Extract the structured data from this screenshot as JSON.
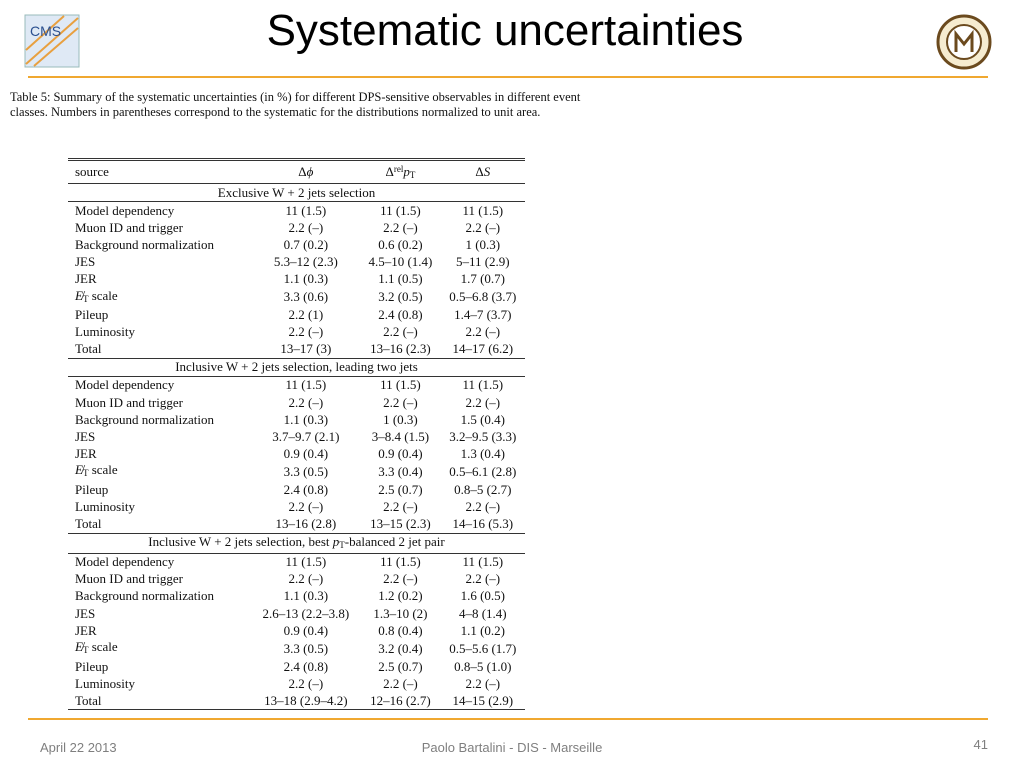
{
  "header": {
    "title": "Systematic uncertainties",
    "logo_left": "CMS"
  },
  "caption": "Table 5:  Summary of the systematic uncertainties (in %) for different DPS-sensitive observables in different event classes.  Numbers in parentheses correspond to the systematic for the distributions normalized to unit area.",
  "table": {
    "columns": [
      "source",
      [
        {
          "text": "Δ"
        },
        {
          "text": "ϕ",
          "style": "i"
        }
      ],
      [
        {
          "text": "Δ"
        },
        {
          "text": "rel",
          "style": "sup"
        },
        {
          "text": "p",
          "style": "i"
        },
        {
          "text": "T",
          "style": "sub"
        }
      ],
      [
        {
          "text": "Δ"
        },
        {
          "text": "S",
          "style": "i"
        }
      ]
    ],
    "sections": [
      {
        "title": "Exclusive W + 2 jets selection",
        "rows": [
          {
            "source": "Model dependency",
            "cells": [
              "11 (1.5)",
              "11 (1.5)",
              "11 (1.5)"
            ]
          },
          {
            "source": "Muon ID and trigger",
            "cells": [
              "2.2 (–)",
              "2.2 (–)",
              "2.2 (–)"
            ]
          },
          {
            "source": "Background normalization",
            "cells": [
              "0.7 (0.2)",
              "0.6 (0.2)",
              "1 (0.3)"
            ]
          },
          {
            "source": "JES",
            "cells": [
              "5.3–12 (2.3)",
              "4.5–10 (1.4)",
              "5–11 (2.9)"
            ]
          },
          {
            "source": "JER",
            "cells": [
              "1.1 (0.3)",
              "1.1 (0.5)",
              "1.7 (0.7)"
            ]
          },
          {
            "source": [
              {
                "text": "E̸",
                "style": "i"
              },
              {
                "text": "T",
                "style": "sub"
              },
              {
                "text": " scale"
              }
            ],
            "cells": [
              "3.3 (0.6)",
              "3.2 (0.5)",
              "0.5–6.8 (3.7)"
            ]
          },
          {
            "source": "Pileup",
            "cells": [
              "2.2 (1)",
              "2.4 (0.8)",
              "1.4–7 (3.7)"
            ]
          },
          {
            "source": "Luminosity",
            "cells": [
              "2.2 (–)",
              "2.2 (–)",
              "2.2 (–)"
            ]
          },
          {
            "source": "Total",
            "cells": [
              "13–17 (3)",
              "13–16 (2.3)",
              "14–17 (6.2)"
            ]
          }
        ]
      },
      {
        "title": "Inclusive W + 2 jets selection, leading two jets",
        "rows": [
          {
            "source": "Model dependency",
            "cells": [
              "11 (1.5)",
              "11 (1.5)",
              "11 (1.5)"
            ]
          },
          {
            "source": "Muon ID and trigger",
            "cells": [
              "2.2 (–)",
              "2.2 (–)",
              "2.2 (–)"
            ]
          },
          {
            "source": "Background normalization",
            "cells": [
              "1.1 (0.3)",
              "1 (0.3)",
              "1.5 (0.4)"
            ]
          },
          {
            "source": "JES",
            "cells": [
              "3.7–9.7 (2.1)",
              "3–8.4 (1.5)",
              "3.2–9.5 (3.3)"
            ]
          },
          {
            "source": "JER",
            "cells": [
              "0.9 (0.4)",
              "0.9 (0.4)",
              "1.3 (0.4)"
            ]
          },
          {
            "source": [
              {
                "text": "E̸",
                "style": "i"
              },
              {
                "text": "T",
                "style": "sub"
              },
              {
                "text": " scale"
              }
            ],
            "cells": [
              "3.3 (0.5)",
              "3.3 (0.4)",
              "0.5–6.1 (2.8)"
            ]
          },
          {
            "source": "Pileup",
            "cells": [
              "2.4 (0.8)",
              "2.5 (0.7)",
              "0.8–5 (2.7)"
            ]
          },
          {
            "source": "Luminosity",
            "cells": [
              "2.2 (–)",
              "2.2 (–)",
              "2.2 (–)"
            ]
          },
          {
            "source": "Total",
            "cells": [
              "13–16 (2.8)",
              "13–15 (2.3)",
              "14–16 (5.3)"
            ]
          }
        ]
      },
      {
        "title": [
          {
            "text": "Inclusive W + 2 jets selection, best "
          },
          {
            "text": "p",
            "style": "i"
          },
          {
            "text": "T",
            "style": "sub"
          },
          {
            "text": "-balanced 2 jet pair"
          }
        ],
        "rows": [
          {
            "source": "Model dependency",
            "cells": [
              "11 (1.5)",
              "11 (1.5)",
              "11 (1.5)"
            ]
          },
          {
            "source": "Muon ID and trigger",
            "cells": [
              "2.2 (–)",
              "2.2 (–)",
              "2.2 (–)"
            ]
          },
          {
            "source": "Background normalization",
            "cells": [
              "1.1 (0.3)",
              "1.2 (0.2)",
              "1.6 (0.5)"
            ]
          },
          {
            "source": "JES",
            "cells": [
              "2.6–13 (2.2–3.8)",
              "1.3–10 (2)",
              "4–8 (1.4)"
            ]
          },
          {
            "source": "JER",
            "cells": [
              "0.9 (0.4)",
              "0.8 (0.4)",
              "1.1 (0.2)"
            ]
          },
          {
            "source": [
              {
                "text": "E̸",
                "style": "i"
              },
              {
                "text": "T",
                "style": "sub"
              },
              {
                "text": " scale"
              }
            ],
            "cells": [
              "3.3 (0.5)",
              "3.2 (0.4)",
              "0.5–5.6 (1.7)"
            ]
          },
          {
            "source": "Pileup",
            "cells": [
              "2.4 (0.8)",
              "2.5 (0.7)",
              "0.8–5 (1.0)"
            ]
          },
          {
            "source": "Luminosity",
            "cells": [
              "2.2 (–)",
              "2.2 (–)",
              "2.2 (–)"
            ]
          },
          {
            "source": "Total",
            "cells": [
              "13–18 (2.9–4.2)",
              "12–16 (2.7)",
              "14–15 (2.9)"
            ]
          }
        ]
      }
    ]
  },
  "footer": {
    "date": "April 22 2013",
    "author": "Paolo Bartalini - DIS - Marseille",
    "page": "41"
  }
}
